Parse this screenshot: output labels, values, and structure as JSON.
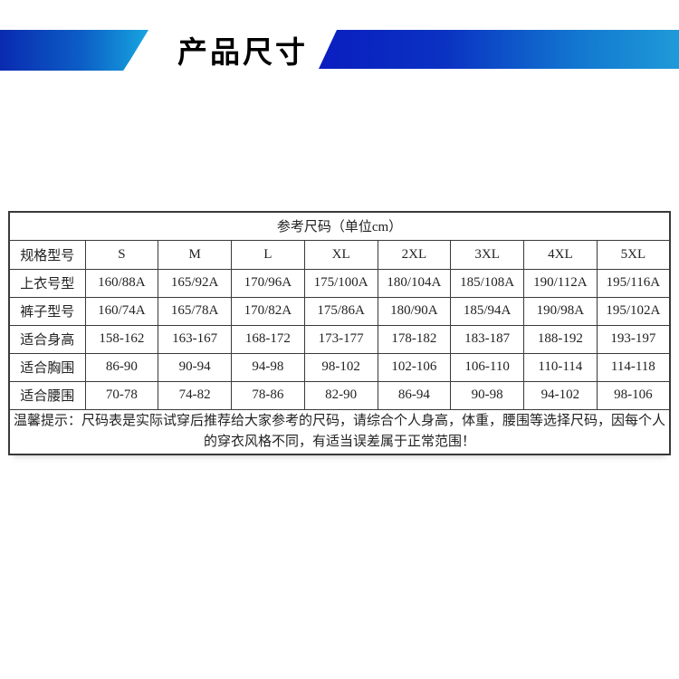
{
  "header": {
    "title": "产品尺寸"
  },
  "colors": {
    "banner_dark_blue": "#0a2ab0",
    "banner_cyan": "#17a5e0",
    "banner_right_end": "#1f9ad8",
    "table_border": "#3a3a3a",
    "text": "#222222"
  },
  "table": {
    "title": "参考尺码（单位cm）",
    "header_row": [
      "规格型号",
      "S",
      "M",
      "L",
      "XL",
      "2XL",
      "3XL",
      "4XL",
      "5XL"
    ],
    "rows": [
      [
        "上衣号型",
        "160/88A",
        "165/92A",
        "170/96A",
        "175/100A",
        "180/104A",
        "185/108A",
        "190/112A",
        "195/116A"
      ],
      [
        "裤子型号",
        "160/74A",
        "165/78A",
        "170/82A",
        "175/86A",
        "180/90A",
        "185/94A",
        "190/98A",
        "195/102A"
      ],
      [
        "适合身高",
        "158-162",
        "163-167",
        "168-172",
        "173-177",
        "178-182",
        "183-187",
        "188-192",
        "193-197"
      ],
      [
        "适合胸围",
        "86-90",
        "90-94",
        "94-98",
        "98-102",
        "102-106",
        "106-110",
        "110-114",
        "114-118"
      ],
      [
        "适合腰围",
        "70-78",
        "74-82",
        "78-86",
        "82-90",
        "86-94",
        "90-98",
        "94-102",
        "98-106"
      ]
    ],
    "note": "温馨提示：尺码表是实际试穿后推荐给大家参考的尺码，请综合个人身高，体重，腰围等选择尺码，因每个人的穿衣风格不同，有适当误差属于正常范围！"
  }
}
